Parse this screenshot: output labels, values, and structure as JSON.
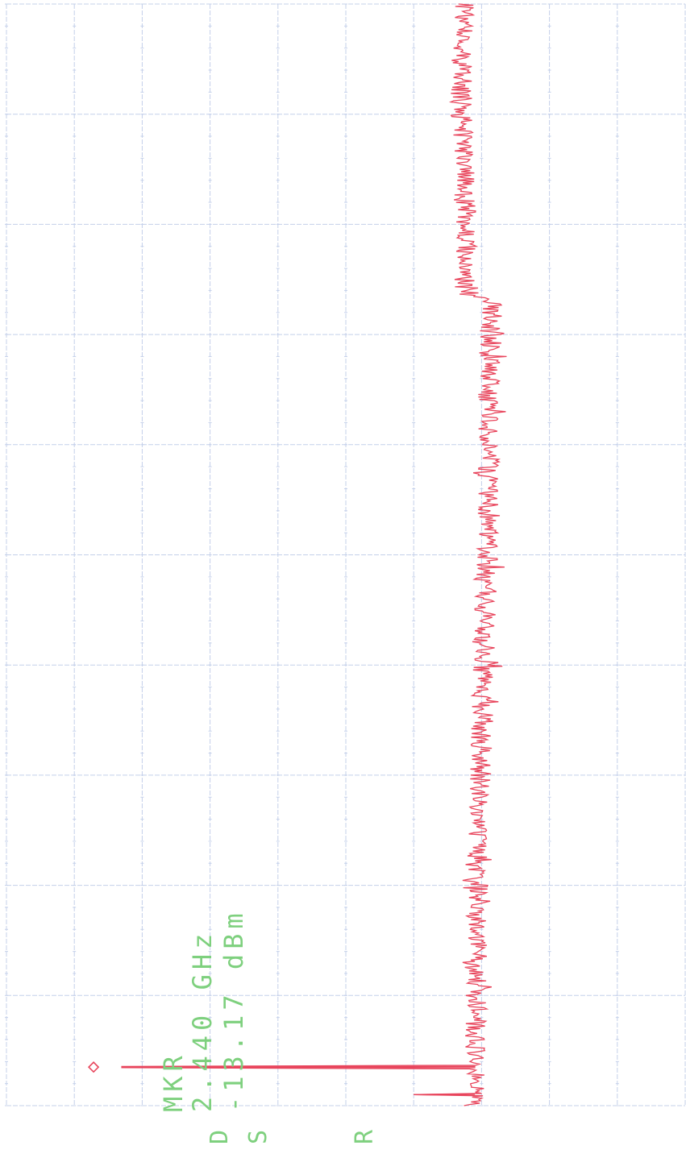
{
  "chart_data": {
    "type": "line",
    "orientation": "rotated-90",
    "x_divisions": 10,
    "y_divisions": 10,
    "grid": true,
    "colors": {
      "grid": "#c4d0ea",
      "trace": "#e8455c",
      "text": "#7ed07e"
    },
    "marker": {
      "label": "MKR",
      "frequency": "2.440 GHz",
      "amplitude": "-13.17 dBm",
      "x_div": 0.35,
      "y_div": 1.45,
      "icon": "diamond-marker-icon"
    },
    "peaks": [
      {
        "x_div": 0.35,
        "y_div": 1.7
      },
      {
        "x_div": 0.1,
        "y_div": 6.0
      }
    ],
    "noise_floor": [
      {
        "x_div": 0.0,
        "y_div": 6.9
      },
      {
        "x_div": 2.3,
        "y_div": 6.95
      },
      {
        "x_div": 3.3,
        "y_div": 7.0
      },
      {
        "x_div": 4.3,
        "y_div": 7.05
      },
      {
        "x_div": 5.3,
        "y_div": 7.1
      },
      {
        "x_div": 6.3,
        "y_div": 7.1
      },
      {
        "x_div": 7.3,
        "y_div": 7.15
      },
      {
        "x_div": 7.35,
        "y_div": 6.8
      },
      {
        "x_div": 9.2,
        "y_div": 6.7
      },
      {
        "x_div": 10.0,
        "y_div": 6.75
      }
    ],
    "annotations": [
      "D",
      "S",
      "R"
    ]
  }
}
